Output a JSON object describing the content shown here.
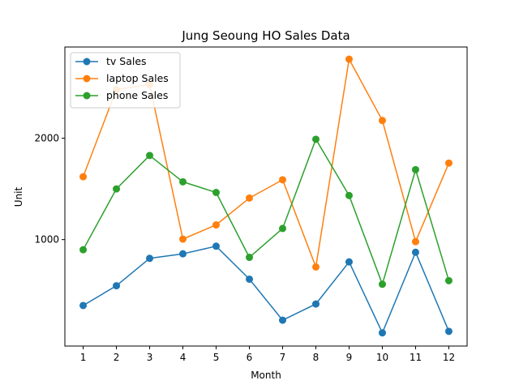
{
  "chart_data": {
    "type": "line",
    "title": "Jung Seoung HO Sales Data",
    "xlabel": "Month",
    "ylabel": "Unit",
    "x": [
      1,
      2,
      3,
      4,
      5,
      6,
      7,
      8,
      9,
      10,
      11,
      12
    ],
    "x_tick_labels": [
      "1",
      "2",
      "3",
      "4",
      "5",
      "6",
      "7",
      "8",
      "9",
      "10",
      "11",
      "12"
    ],
    "y_ticks": [
      1000,
      2000
    ],
    "y_tick_labels": [
      "1000",
      "2000"
    ],
    "xlim": [
      0.45,
      12.55
    ],
    "ylim": [
      -50,
      2900
    ],
    "grid": false,
    "legend_position": "upper-left",
    "series": [
      {
        "name": "tv Sales",
        "color": "#1f77b4",
        "values": [
          350,
          545,
          815,
          860,
          935,
          610,
          205,
          365,
          780,
          80,
          875,
          95
        ]
      },
      {
        "name": "laptop Sales",
        "color": "#ff7f0e",
        "values": [
          1620,
          2480,
          2530,
          1005,
          1145,
          1410,
          1590,
          730,
          2780,
          2175,
          980,
          1755
        ]
      },
      {
        "name": "phone Sales",
        "color": "#2ca02c",
        "values": [
          900,
          1500,
          1830,
          1570,
          1465,
          825,
          1110,
          1990,
          1435,
          560,
          1690,
          595
        ]
      }
    ]
  }
}
